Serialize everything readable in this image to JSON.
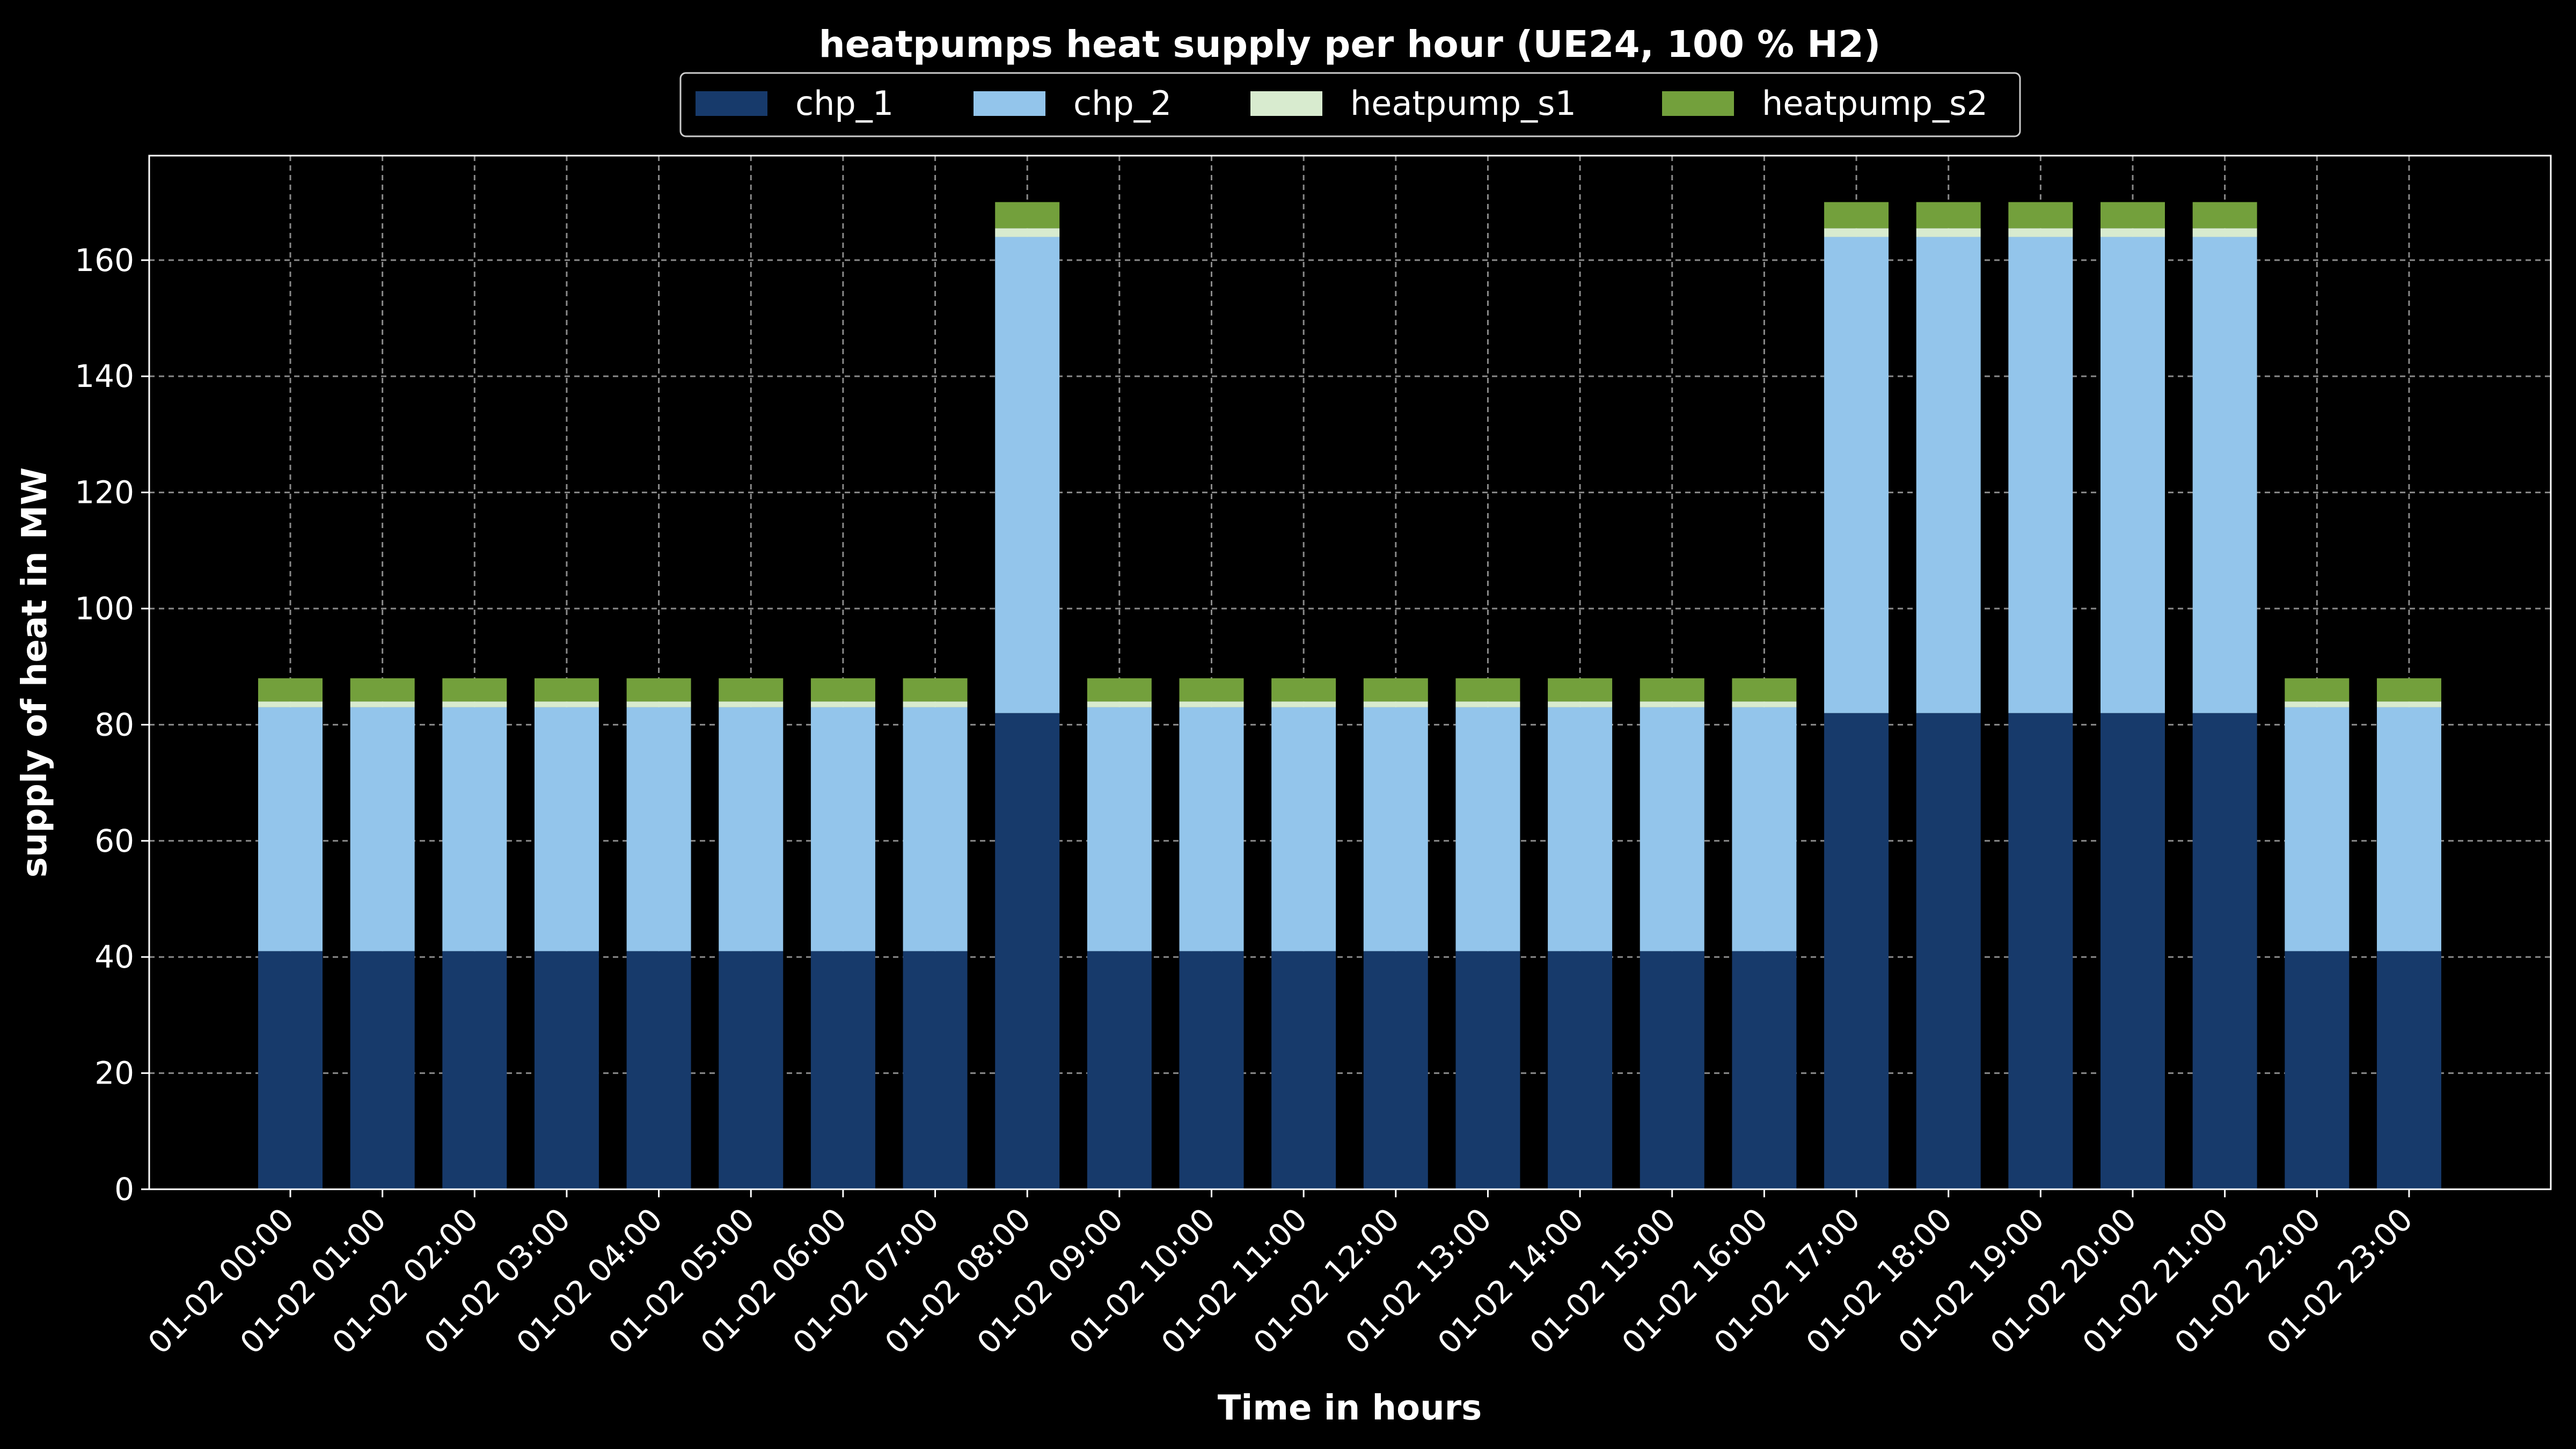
{
  "chart_data": {
    "type": "bar",
    "stacked": true,
    "title": "heatpumps heat supply per hour (UE24, 100 % H2)",
    "xlabel": "Time in hours",
    "ylabel": "supply of heat in MW",
    "ylim": [
      0,
      178
    ],
    "yticks": [
      0,
      20,
      40,
      60,
      80,
      100,
      120,
      140,
      160
    ],
    "grid": true,
    "legend_position": "top-center",
    "categories": [
      "01-02 00:00",
      "01-02 01:00",
      "01-02 02:00",
      "01-02 03:00",
      "01-02 04:00",
      "01-02 05:00",
      "01-02 06:00",
      "01-02 07:00",
      "01-02 08:00",
      "01-02 09:00",
      "01-02 10:00",
      "01-02 11:00",
      "01-02 12:00",
      "01-02 13:00",
      "01-02 14:00",
      "01-02 15:00",
      "01-02 16:00",
      "01-02 17:00",
      "01-02 18:00",
      "01-02 19:00",
      "01-02 20:00",
      "01-02 21:00",
      "01-02 22:00",
      "01-02 23:00"
    ],
    "series": [
      {
        "name": "chp_1",
        "color": "#173a6b",
        "values": [
          41,
          41,
          41,
          41,
          41,
          41,
          41,
          41,
          82,
          41,
          41,
          41,
          41,
          41,
          41,
          41,
          41,
          82,
          82,
          82,
          82,
          82,
          41,
          41
        ]
      },
      {
        "name": "chp_2",
        "color": "#93c5eb",
        "values": [
          42,
          42,
          42,
          42,
          42,
          42,
          42,
          42,
          82,
          42,
          42,
          42,
          42,
          42,
          42,
          42,
          42,
          82,
          82,
          82,
          82,
          82,
          42,
          42
        ]
      },
      {
        "name": "heatpump_s1",
        "color": "#d8ebcf",
        "values": [
          1,
          1,
          1,
          1,
          1,
          1,
          1,
          1,
          1.5,
          1,
          1,
          1,
          1,
          1,
          1,
          1,
          1,
          1.5,
          1.5,
          1.5,
          1.5,
          1.5,
          1,
          1
        ]
      },
      {
        "name": "heatpump_s2",
        "color": "#73a03c",
        "values": [
          4,
          4,
          4,
          4,
          4,
          4,
          4,
          4,
          4.5,
          4,
          4,
          4,
          4,
          4,
          4,
          4,
          4,
          4.5,
          4.5,
          4.5,
          4.5,
          4.5,
          4,
          4
        ]
      }
    ]
  }
}
